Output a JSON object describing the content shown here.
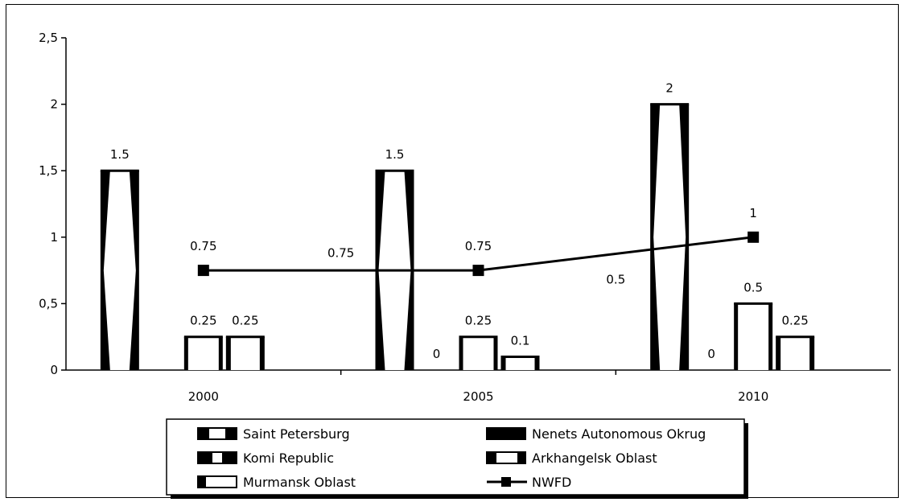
{
  "chart_data": {
    "type": "bar",
    "categories": [
      "2000",
      "2005",
      "2010"
    ],
    "ylim": [
      0,
      2.5
    ],
    "yticks": [
      "0",
      "0,5",
      "1",
      "1,5",
      "2",
      "2,5"
    ],
    "ytick_values": [
      0,
      0.5,
      1,
      1.5,
      2,
      2.5
    ],
    "grid": false,
    "legend_position": "bottom",
    "series": [
      {
        "name": "Saint Petersburg",
        "pattern": "hollow-thin-edges",
        "values": [
          1.5,
          1.5,
          2
        ],
        "labels": [
          "1.5",
          "1.5",
          "2"
        ]
      },
      {
        "name": "Nenets Autonomous Okrug",
        "pattern": "solid-edges",
        "values": [
          null,
          0,
          0
        ],
        "labels": [
          "",
          "0",
          "0"
        ]
      },
      {
        "name": "Komi Republic",
        "pattern": "dark-ends",
        "values": [
          0.25,
          0.25,
          0.5
        ],
        "labels": [
          "0.25",
          "0.25",
          "0.5"
        ]
      },
      {
        "name": "Arkhangelsk Oblast",
        "pattern": "thick-edges",
        "values": [
          0.25,
          0.1,
          0.25
        ],
        "labels": [
          "0.25",
          "0.1",
          "0.25"
        ]
      },
      {
        "name": "Murmansk Oblast",
        "pattern": "left-edge",
        "values": [
          null,
          null,
          null
        ],
        "labels": [
          "",
          "",
          ""
        ]
      }
    ],
    "line_series": {
      "name": "NWFD",
      "values": [
        0.75,
        0.75,
        1
      ],
      "labels": [
        "0.75",
        "0.75",
        "1"
      ]
    },
    "extra_labels": [
      {
        "text": "0.75",
        "x_between": [
          0,
          1
        ],
        "y": 0.85
      },
      {
        "text": "0.5",
        "x_between": [
          1,
          2
        ],
        "y": 0.65
      }
    ],
    "colors": {
      "ink": "#000000",
      "fill": "#ffffff"
    }
  }
}
